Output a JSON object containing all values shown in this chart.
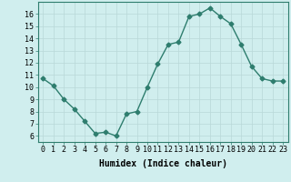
{
  "x": [
    0,
    1,
    2,
    3,
    4,
    5,
    6,
    7,
    8,
    9,
    10,
    11,
    12,
    13,
    14,
    15,
    16,
    17,
    18,
    19,
    20,
    21,
    22,
    23
  ],
  "y": [
    10.7,
    10.1,
    9.0,
    8.2,
    7.2,
    6.2,
    6.3,
    6.0,
    7.8,
    8.0,
    10.0,
    11.9,
    13.5,
    13.7,
    15.8,
    16.0,
    16.5,
    15.8,
    15.2,
    13.5,
    11.7,
    10.7,
    10.5,
    10.5
  ],
  "line_color": "#2e7d6e",
  "marker": "D",
  "markersize": 2.5,
  "linewidth": 1.0,
  "bg_color": "#d0eeee",
  "grid_color": "#b8d8d8",
  "xlabel": "Humidex (Indice chaleur)",
  "xlabel_fontsize": 7,
  "tick_fontsize": 6,
  "ylim": [
    5.5,
    17.0
  ],
  "xlim": [
    -0.5,
    23.5
  ],
  "yticks": [
    6,
    7,
    8,
    9,
    10,
    11,
    12,
    13,
    14,
    15,
    16
  ],
  "xticks": [
    0,
    1,
    2,
    3,
    4,
    5,
    6,
    7,
    8,
    9,
    10,
    11,
    12,
    13,
    14,
    15,
    16,
    17,
    18,
    19,
    20,
    21,
    22,
    23
  ]
}
